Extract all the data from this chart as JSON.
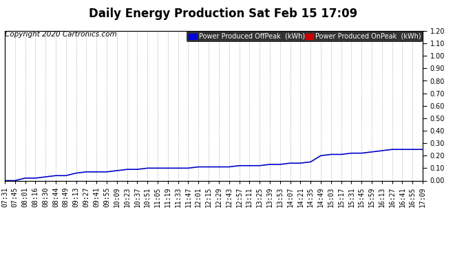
{
  "title": "Daily Energy Production Sat Feb 15 17:09",
  "copyright": "Copyright 2020 Cartronics.com",
  "legend_offpeak": "Power Produced OffPeak  (kWh)",
  "legend_onpeak": "Power Produced OnPeak  (kWh)",
  "legend_offpeak_color": "#0000dd",
  "legend_onpeak_color": "#cc0000",
  "legend_bg": "#000000",
  "legend_text_color": "#ffffff",
  "ylim": [
    0.0,
    1.2
  ],
  "yticks": [
    0.0,
    0.1,
    0.2,
    0.3,
    0.4,
    0.5,
    0.6,
    0.7,
    0.8,
    0.9,
    1.0,
    1.1,
    1.2
  ],
  "x_labels": [
    "07:31",
    "07:45",
    "08:01",
    "08:16",
    "08:30",
    "08:44",
    "08:49",
    "09:13",
    "09:27",
    "09:41",
    "09:55",
    "10:09",
    "10:23",
    "10:37",
    "10:51",
    "11:05",
    "11:19",
    "11:33",
    "11:47",
    "12:01",
    "12:15",
    "12:29",
    "12:43",
    "12:57",
    "13:11",
    "13:25",
    "13:39",
    "13:53",
    "14:07",
    "14:21",
    "14:35",
    "14:49",
    "15:03",
    "15:17",
    "15:31",
    "15:45",
    "15:59",
    "16:13",
    "16:27",
    "16:41",
    "16:55",
    "17:09"
  ],
  "y_values": [
    0.0,
    0.0,
    0.02,
    0.02,
    0.03,
    0.04,
    0.04,
    0.06,
    0.07,
    0.07,
    0.07,
    0.08,
    0.09,
    0.09,
    0.1,
    0.1,
    0.1,
    0.1,
    0.1,
    0.11,
    0.11,
    0.11,
    0.11,
    0.12,
    0.12,
    0.12,
    0.13,
    0.13,
    0.14,
    0.14,
    0.15,
    0.2,
    0.21,
    0.21,
    0.22,
    0.22,
    0.23,
    0.24,
    0.25,
    0.25,
    0.25,
    0.25
  ],
  "line_color": "#0000cc",
  "line_width": 1.2,
  "bg_color": "#ffffff",
  "grid_color": "#aaaaaa",
  "title_fontsize": 12,
  "copyright_fontsize": 7.5,
  "tick_fontsize": 7
}
